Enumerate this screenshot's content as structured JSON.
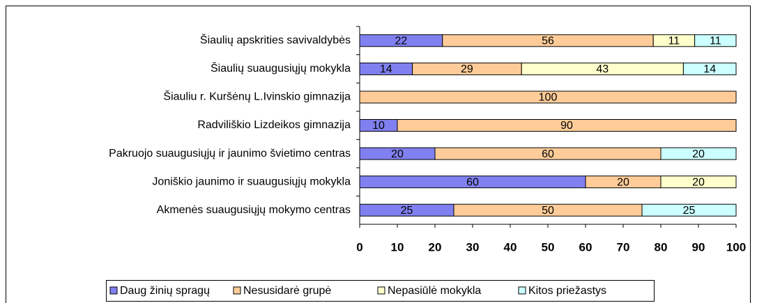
{
  "chart_data": {
    "type": "stacked-barh",
    "categories": [
      "Šiaulių apskrities savivaldybės",
      "Šiaulių suaugusiųjų mokykla",
      "Šiauliu r. Kuršėnų L.Ivinskio gimnazija",
      "Radviliškio Lizdeikos gimnazija",
      "Pakruojo suaugusiųjų ir jaunimo švietimo centras",
      "Joniškio jaunimo ir suaugusiųjų mokykla",
      "Akmenės suaugusiųjų mokymo centras"
    ],
    "series": [
      {
        "name": "Daug žinių spragų",
        "color": "#8080f0",
        "values": [
          22,
          14,
          null,
          10,
          20,
          60,
          25
        ]
      },
      {
        "name": "Nesusidarė grupė",
        "color": "#ffcc99",
        "values": [
          56,
          29,
          100,
          90,
          60,
          20,
          50
        ]
      },
      {
        "name": "Nepasiūlė mokykla",
        "color": "#ffffcc",
        "values": [
          11,
          43,
          null,
          null,
          null,
          20,
          null
        ]
      },
      {
        "name": "Kitos priežastys",
        "color": "#ccffff",
        "values": [
          11,
          14,
          null,
          null,
          20,
          null,
          25
        ]
      }
    ],
    "xlim": [
      0,
      100
    ],
    "xticks": [
      0,
      10,
      20,
      30,
      40,
      50,
      60,
      70,
      80,
      90,
      100
    ],
    "legend": "bottom"
  }
}
